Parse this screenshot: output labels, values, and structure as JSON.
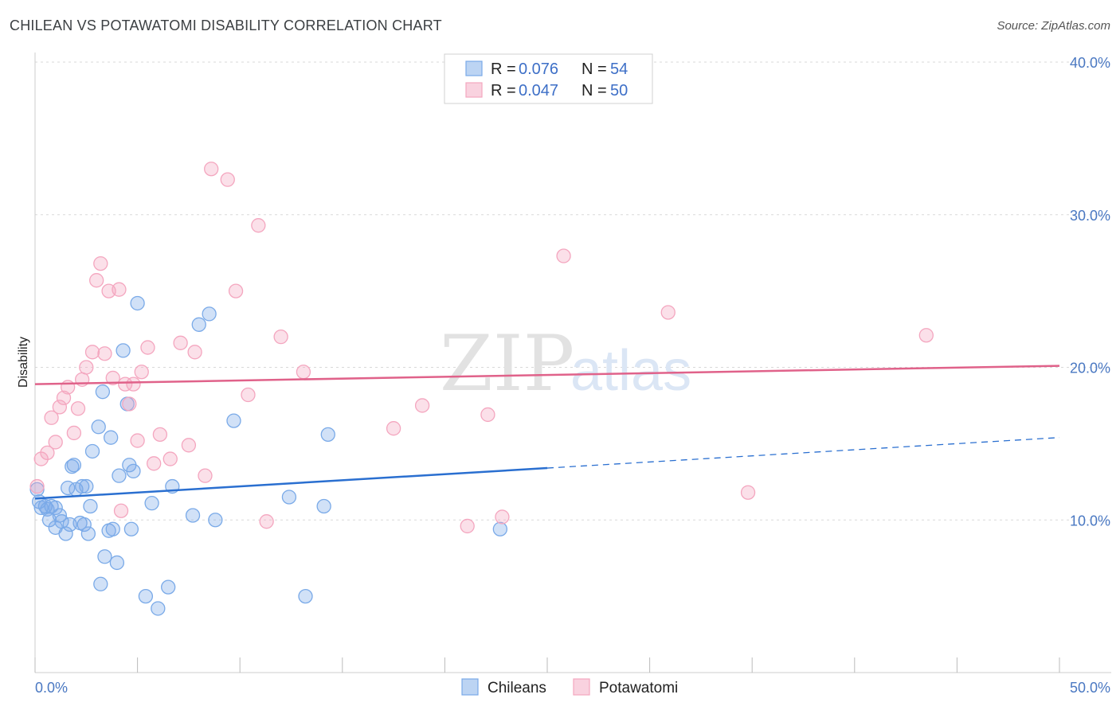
{
  "title": "CHILEAN VS POTAWATOMI DISABILITY CORRELATION CHART",
  "source": "Source: ZipAtlas.com",
  "watermark": {
    "part1": "ZIP",
    "part2": "atlas"
  },
  "chart_data": {
    "type": "scatter",
    "ylabel": "Disability",
    "xlim": [
      0,
      50
    ],
    "ylim": [
      0,
      40
    ],
    "x_ticks": [
      {
        "value": 0,
        "label": "0.0%"
      },
      {
        "value": 50,
        "label": "50.0%"
      }
    ],
    "y_ticks": [
      {
        "value": 10,
        "label": "10.0%"
      },
      {
        "value": 20,
        "label": "20.0%"
      },
      {
        "value": 30,
        "label": "30.0%"
      },
      {
        "value": 40,
        "label": "40.0%"
      }
    ],
    "grid": true,
    "legend_position": "top-center",
    "series": [
      {
        "name": "Chileans",
        "color": "#7aaae8",
        "line_color": "#2a6fd0",
        "r_label": "R =",
        "r_value": "0.076",
        "n_label": "N =",
        "n_value": "54",
        "trend": {
          "x0": 0,
          "y0": 11.4,
          "x1": 25,
          "y1": 13.4,
          "dashed_to_x": 50,
          "dashed_to_y": 15.4
        },
        "points": [
          [
            0.1,
            12.0
          ],
          [
            0.2,
            11.2
          ],
          [
            0.3,
            10.8
          ],
          [
            0.5,
            10.9
          ],
          [
            0.6,
            10.7
          ],
          [
            0.7,
            10.0
          ],
          [
            0.8,
            10.9
          ],
          [
            1.0,
            10.8
          ],
          [
            1.0,
            9.5
          ],
          [
            1.2,
            10.3
          ],
          [
            1.3,
            9.9
          ],
          [
            1.5,
            9.1
          ],
          [
            1.6,
            12.1
          ],
          [
            1.7,
            9.7
          ],
          [
            1.8,
            13.5
          ],
          [
            1.9,
            13.6
          ],
          [
            2.0,
            12.0
          ],
          [
            2.2,
            9.8
          ],
          [
            2.3,
            12.2
          ],
          [
            2.4,
            9.7
          ],
          [
            2.5,
            12.2
          ],
          [
            2.6,
            9.1
          ],
          [
            2.7,
            10.9
          ],
          [
            2.8,
            14.5
          ],
          [
            3.1,
            16.1
          ],
          [
            3.2,
            5.8
          ],
          [
            3.3,
            18.4
          ],
          [
            3.4,
            7.6
          ],
          [
            3.6,
            9.3
          ],
          [
            3.7,
            15.4
          ],
          [
            3.8,
            9.4
          ],
          [
            4.0,
            7.2
          ],
          [
            4.1,
            12.9
          ],
          [
            4.3,
            21.1
          ],
          [
            4.5,
            17.6
          ],
          [
            4.6,
            13.6
          ],
          [
            4.7,
            9.4
          ],
          [
            4.8,
            13.2
          ],
          [
            5.0,
            24.2
          ],
          [
            5.4,
            5.0
          ],
          [
            5.7,
            11.1
          ],
          [
            6.0,
            4.2
          ],
          [
            6.5,
            5.6
          ],
          [
            6.7,
            12.2
          ],
          [
            7.7,
            10.3
          ],
          [
            8.0,
            22.8
          ],
          [
            8.5,
            23.5
          ],
          [
            8.8,
            10.0
          ],
          [
            9.7,
            16.5
          ],
          [
            12.4,
            11.5
          ],
          [
            13.2,
            5.0
          ],
          [
            14.1,
            10.9
          ],
          [
            14.3,
            15.6
          ],
          [
            22.7,
            9.4
          ]
        ]
      },
      {
        "name": "Potawatomi",
        "color": "#f4a6bf",
        "line_color": "#e0628a",
        "r_label": "R =",
        "r_value": "0.047",
        "n_label": "N =",
        "n_value": "50",
        "trend": {
          "x0": 0,
          "y0": 18.9,
          "x1": 50,
          "y1": 20.1
        },
        "points": [
          [
            0.1,
            12.2
          ],
          [
            0.3,
            14.0
          ],
          [
            0.6,
            14.4
          ],
          [
            0.8,
            16.7
          ],
          [
            1.0,
            15.1
          ],
          [
            1.2,
            17.4
          ],
          [
            1.4,
            18.0
          ],
          [
            1.6,
            18.7
          ],
          [
            1.9,
            15.7
          ],
          [
            2.1,
            17.3
          ],
          [
            2.3,
            19.2
          ],
          [
            2.5,
            20.0
          ],
          [
            2.8,
            21.0
          ],
          [
            3.0,
            25.7
          ],
          [
            3.2,
            26.8
          ],
          [
            3.4,
            20.9
          ],
          [
            3.6,
            25.0
          ],
          [
            3.8,
            19.3
          ],
          [
            4.1,
            25.1
          ],
          [
            4.2,
            10.6
          ],
          [
            4.4,
            18.9
          ],
          [
            4.6,
            17.6
          ],
          [
            4.8,
            18.9
          ],
          [
            5.0,
            15.2
          ],
          [
            5.2,
            19.7
          ],
          [
            5.5,
            21.3
          ],
          [
            5.8,
            13.7
          ],
          [
            6.1,
            15.6
          ],
          [
            6.6,
            14.0
          ],
          [
            7.1,
            21.6
          ],
          [
            7.5,
            14.9
          ],
          [
            7.8,
            21.0
          ],
          [
            8.3,
            12.9
          ],
          [
            8.6,
            33.0
          ],
          [
            9.4,
            32.3
          ],
          [
            9.8,
            25.0
          ],
          [
            10.4,
            18.2
          ],
          [
            10.9,
            29.3
          ],
          [
            11.3,
            9.9
          ],
          [
            12.0,
            22.0
          ],
          [
            13.1,
            19.7
          ],
          [
            17.5,
            16.0
          ],
          [
            18.9,
            17.5
          ],
          [
            21.1,
            9.6
          ],
          [
            22.1,
            16.9
          ],
          [
            22.8,
            10.2
          ],
          [
            25.8,
            27.3
          ],
          [
            30.9,
            23.6
          ],
          [
            34.8,
            11.8
          ],
          [
            43.5,
            22.1
          ]
        ]
      }
    ]
  }
}
